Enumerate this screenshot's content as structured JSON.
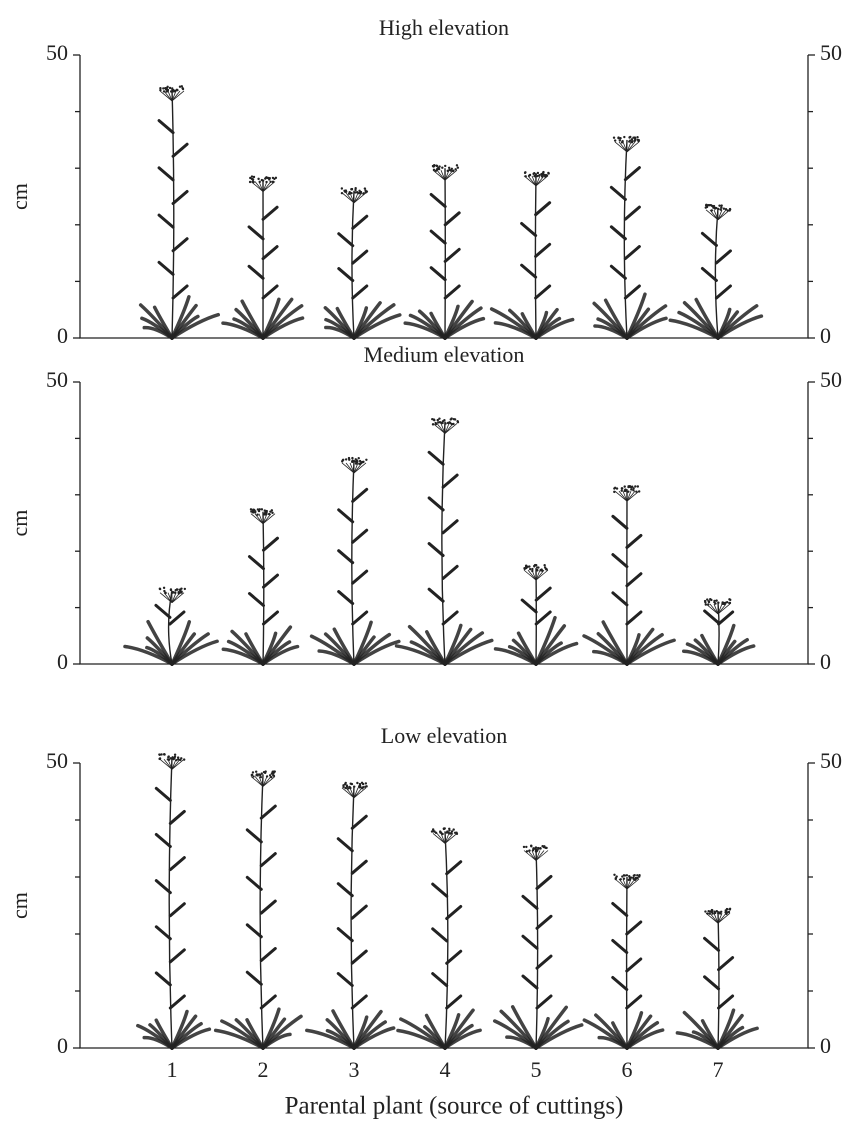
{
  "chart_data": [
    {
      "type": "plant",
      "title": "High elevation",
      "ylabel": "cm",
      "values": [
        44,
        28,
        26,
        30,
        29,
        35,
        23
      ],
      "ylim": [
        0,
        50
      ],
      "yticks": [
        0,
        50
      ],
      "minor_yticks": [
        10,
        20,
        30,
        40
      ],
      "color": "#222222"
    },
    {
      "type": "plant",
      "title": "Medium elevation",
      "ylabel": "cm",
      "values": [
        13,
        27,
        36,
        43,
        17,
        31,
        11
      ],
      "ylim": [
        0,
        50
      ],
      "yticks": [
        0,
        50
      ],
      "minor_yticks": [
        10,
        20,
        30,
        40
      ],
      "color": "#222222"
    },
    {
      "type": "plant",
      "title": "Low elevation",
      "ylabel": "cm",
      "categories": [
        "1",
        "2",
        "3",
        "4",
        "5",
        "6",
        "7"
      ],
      "xlabel": "Parental plant (source of cuttings)",
      "values": [
        51,
        48,
        46,
        38,
        35,
        30,
        24
      ],
      "ylim": [
        0,
        50
      ],
      "yticks": [
        0,
        50
      ],
      "minor_yticks": [
        10,
        20,
        30,
        40
      ],
      "color": "#222222"
    }
  ]
}
